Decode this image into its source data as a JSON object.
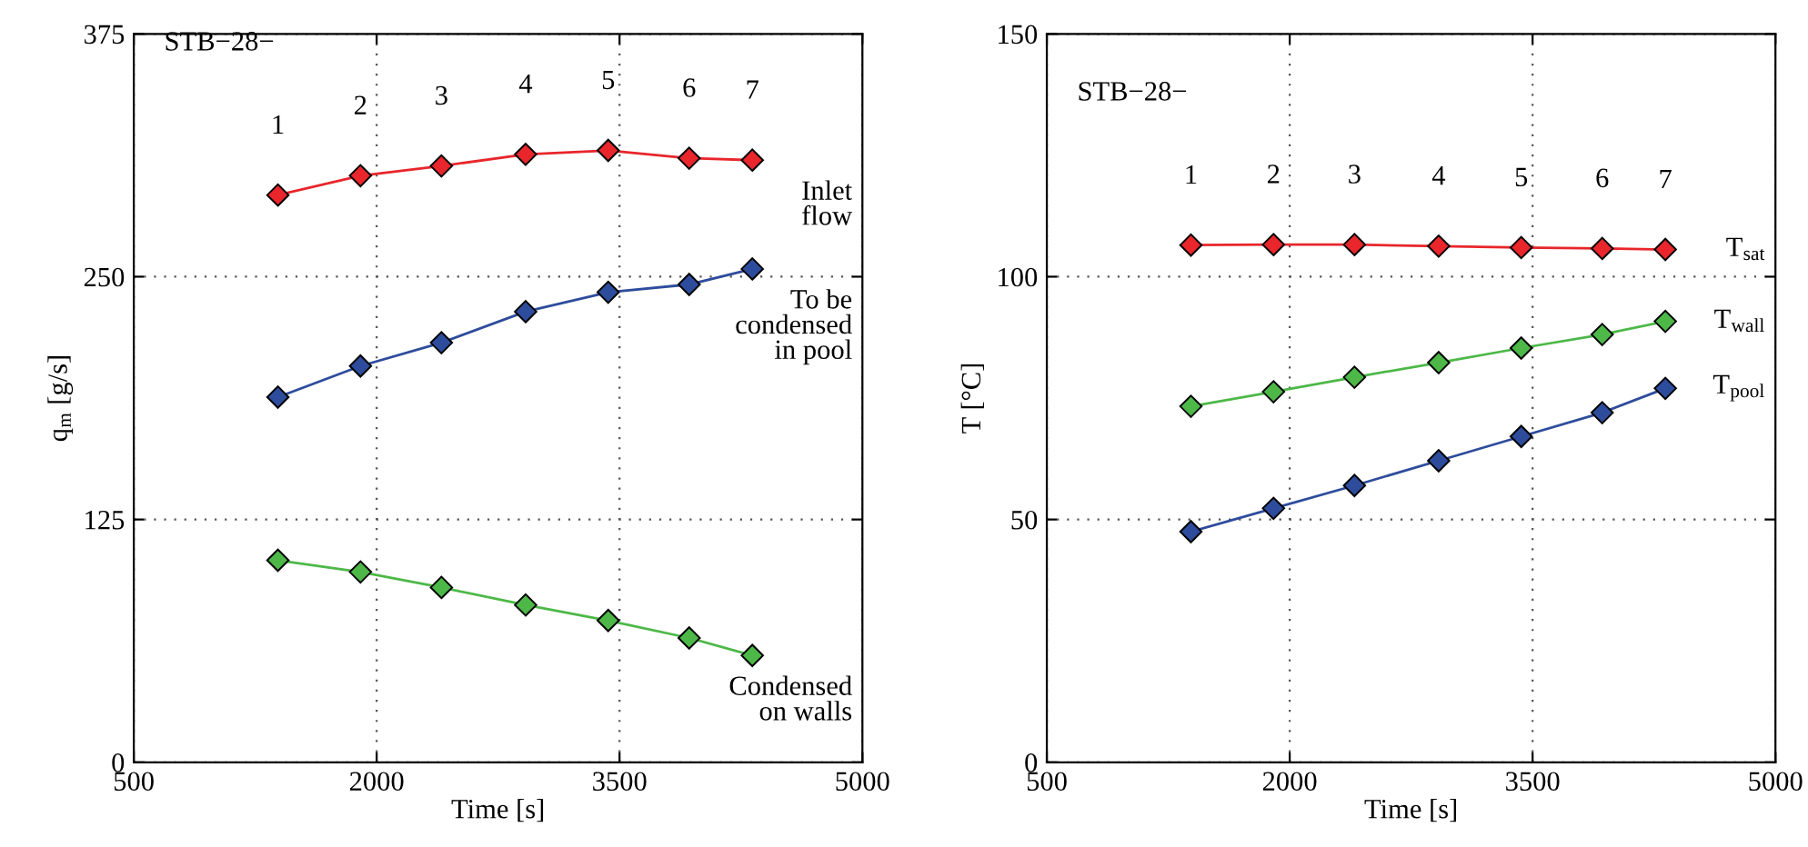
{
  "chart_data": [
    {
      "type": "line",
      "xlabel": "Time [s]",
      "ylabel": "q$_{m}$ [g/s]",
      "xlim": [
        500,
        5000
      ],
      "xticks": [
        500,
        2000,
        3500,
        5000
      ],
      "ylim": [
        0,
        375
      ],
      "yticks": [
        0,
        125,
        250,
        375
      ],
      "grid": true,
      "marker": "diamond",
      "line_style": "solid",
      "legend": "right",
      "x": [
        1390,
        1900,
        2400,
        2920,
        3430,
        3930,
        4320
      ],
      "series": [
        {
          "name": "Inlet\nflow",
          "color": "#e8262b",
          "values": [
            292,
            302,
            307,
            313,
            315,
            311,
            310
          ]
        },
        {
          "name": "To be\ncondensed\nin pool",
          "color": "#2e4c9c",
          "values": [
            188,
            204,
            216,
            232,
            242,
            246,
            254
          ]
        },
        {
          "name": "Condensed\non walls",
          "color": "#4db848",
          "values": [
            104,
            98,
            90,
            81,
            73,
            64,
            55
          ]
        }
      ],
      "annotations": [
        "STB−28−",
        "1",
        "2",
        "3",
        "4",
        "5",
        "6",
        "7"
      ]
    },
    {
      "type": "line",
      "xlabel": "Time [s]",
      "ylabel": "T [°C]",
      "xlim": [
        500,
        5000
      ],
      "xticks": [
        500,
        2000,
        3500,
        5000
      ],
      "ylim": [
        0,
        150
      ],
      "yticks": [
        0,
        50,
        100,
        150
      ],
      "grid": true,
      "marker": "diamond",
      "line_style": "solid",
      "legend": "right",
      "x": [
        1390,
        1900,
        2400,
        2920,
        3430,
        3930,
        4320
      ],
      "series": [
        {
          "name": "T$_{sat}$",
          "color": "#e8262b",
          "values": [
            106.5,
            106.6,
            106.6,
            106.3,
            106,
            105.8,
            105.6
          ]
        },
        {
          "name": "T$_{wall}$",
          "color": "#4db848",
          "values": [
            73.3,
            76.3,
            79.3,
            82.3,
            85.3,
            88.1,
            90.8
          ]
        },
        {
          "name": "T$_{pool}$",
          "color": "#2e4c9c",
          "values": [
            47.5,
            52.3,
            57,
            62.1,
            67.1,
            72,
            77
          ]
        }
      ],
      "annotations": [
        "STB−28−",
        "1",
        "2",
        "3",
        "4",
        "5",
        "6",
        "7"
      ]
    }
  ]
}
